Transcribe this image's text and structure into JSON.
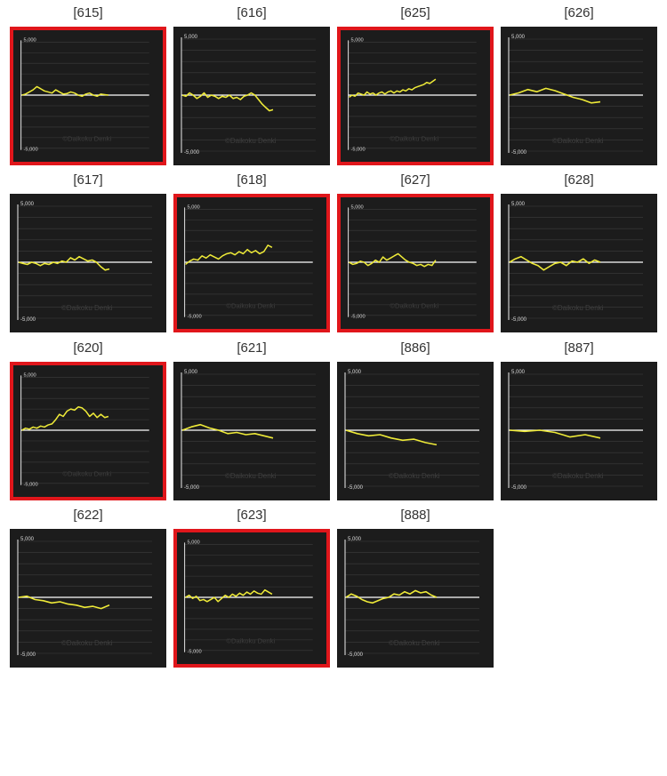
{
  "colors": {
    "line": "#eeea38",
    "highlight": "#e0161b",
    "panel": "#1c1c1c",
    "zero": "#ffffff"
  },
  "watermark": "©Daikoku Denki",
  "chart_data": [
    {
      "type": "line",
      "title": "[615]",
      "highlighted": true,
      "ylim": [
        -5000,
        5000
      ],
      "yticks": [
        "5,000",
        "-5,000"
      ],
      "grid": true,
      "values": [
        0,
        100,
        300,
        500,
        800,
        600,
        400,
        300,
        200,
        500,
        300,
        100,
        150,
        300,
        200,
        0,
        -100,
        100,
        200,
        0,
        -100,
        100,
        50,
        0
      ]
    },
    {
      "type": "line",
      "title": "[616]",
      "highlighted": false,
      "ylim": [
        -5000,
        5000
      ],
      "yticks": [
        "5,000",
        "-5,000"
      ],
      "grid": true,
      "values": [
        0,
        -100,
        200,
        0,
        -300,
        -100,
        200,
        -200,
        0,
        -100,
        -300,
        -100,
        -200,
        0,
        -300,
        -200,
        -400,
        -100,
        0,
        200,
        0,
        -400,
        -800,
        -1100,
        -1400,
        -1300
      ]
    },
    {
      "type": "line",
      "title": "[625]",
      "highlighted": true,
      "ylim": [
        -5000,
        5000
      ],
      "yticks": [
        "5,000",
        "-5,000"
      ],
      "grid": true,
      "values": [
        -200,
        0,
        -100,
        200,
        100,
        0,
        300,
        100,
        200,
        0,
        200,
        300,
        100,
        300,
        400,
        200,
        400,
        300,
        500,
        400,
        600,
        500,
        700,
        800,
        900,
        1000,
        1200,
        1100,
        1300,
        1500
      ]
    },
    {
      "type": "line",
      "title": "[626]",
      "highlighted": false,
      "ylim": [
        -5000,
        5000
      ],
      "yticks": [
        "5,000",
        "-5,000"
      ],
      "grid": true,
      "values": [
        0,
        200,
        500,
        300,
        600,
        400,
        100,
        -200,
        -400,
        -700,
        -600
      ]
    },
    {
      "type": "line",
      "title": "[617]",
      "highlighted": false,
      "ylim": [
        -5000,
        5000
      ],
      "yticks": [
        "5,000",
        "-5,000"
      ],
      "grid": true,
      "values": [
        0,
        -100,
        -200,
        0,
        -100,
        -300,
        -100,
        -200,
        0,
        -100,
        100,
        0,
        400,
        200,
        500,
        300,
        100,
        200,
        0,
        -400,
        -700,
        -600
      ]
    },
    {
      "type": "line",
      "title": "[618]",
      "highlighted": true,
      "ylim": [
        -5000,
        5000
      ],
      "yticks": [
        "5,000",
        "-5,000"
      ],
      "grid": true,
      "values": [
        -200,
        100,
        300,
        200,
        600,
        400,
        700,
        500,
        300,
        600,
        800,
        900,
        700,
        1000,
        800,
        1200,
        900,
        1100,
        800,
        1000,
        1600,
        1400
      ]
    },
    {
      "type": "line",
      "title": "[627]",
      "highlighted": true,
      "ylim": [
        -5000,
        5000
      ],
      "yticks": [
        "5,000",
        "-5,000"
      ],
      "grid": true,
      "values": [
        0,
        -200,
        -100,
        100,
        0,
        -300,
        -100,
        200,
        0,
        500,
        200,
        400,
        600,
        800,
        500,
        200,
        0,
        -100,
        -300,
        -200,
        -400,
        -200,
        -300,
        200
      ]
    },
    {
      "type": "line",
      "title": "[628]",
      "highlighted": false,
      "ylim": [
        -5000,
        5000
      ],
      "yticks": [
        "5,000",
        "-5,000"
      ],
      "grid": true,
      "values": [
        0,
        300,
        500,
        200,
        -100,
        -300,
        -700,
        -400,
        -100,
        0,
        -300,
        100,
        0,
        300,
        -100,
        200,
        0
      ]
    },
    {
      "type": "line",
      "title": "[620]",
      "highlighted": true,
      "ylim": [
        -5000,
        5000
      ],
      "yticks": [
        "5,000",
        "-5,000"
      ],
      "grid": true,
      "values": [
        0,
        200,
        100,
        300,
        200,
        400,
        300,
        500,
        600,
        1000,
        1500,
        1300,
        1800,
        2000,
        1900,
        2200,
        2100,
        1800,
        1300,
        1600,
        1200,
        1500,
        1200,
        1300
      ]
    },
    {
      "type": "line",
      "title": "[621]",
      "highlighted": false,
      "ylim": [
        -5000,
        5000
      ],
      "yticks": [
        "5,000",
        "-5,000"
      ],
      "grid": true,
      "values": [
        0,
        300,
        500,
        200,
        0,
        -300,
        -200,
        -400,
        -300,
        -500,
        -700
      ]
    },
    {
      "type": "line",
      "title": "[886]",
      "highlighted": false,
      "ylim": [
        -5000,
        5000
      ],
      "yticks": [
        "5,000",
        "-5,000"
      ],
      "grid": true,
      "values": [
        0,
        -300,
        -500,
        -400,
        -700,
        -900,
        -800,
        -1100,
        -1300
      ]
    },
    {
      "type": "line",
      "title": "[887]",
      "highlighted": false,
      "ylim": [
        -5000,
        5000
      ],
      "yticks": [
        "5,000",
        "-5,000"
      ],
      "grid": true,
      "values": [
        0,
        -100,
        0,
        -200,
        -600,
        -400,
        -700
      ]
    },
    {
      "type": "line",
      "title": "[622]",
      "highlighted": false,
      "ylim": [
        -5000,
        5000
      ],
      "yticks": [
        "5,000",
        "-5,000"
      ],
      "grid": true,
      "values": [
        0,
        100,
        -200,
        -300,
        -500,
        -400,
        -600,
        -700,
        -900,
        -800,
        -1000,
        -700
      ]
    },
    {
      "type": "line",
      "title": "[623]",
      "highlighted": true,
      "ylim": [
        -5000,
        5000
      ],
      "yticks": [
        "5,000",
        "-5,000"
      ],
      "grid": true,
      "values": [
        0,
        200,
        -100,
        100,
        -300,
        -200,
        -400,
        -200,
        0,
        -400,
        -100,
        200,
        0,
        300,
        100,
        400,
        200,
        500,
        300,
        600,
        400,
        300,
        700,
        500,
        300
      ]
    },
    {
      "type": "line",
      "title": "[888]",
      "highlighted": false,
      "ylim": [
        -5000,
        5000
      ],
      "yticks": [
        "5,000",
        "-5,000"
      ],
      "grid": true,
      "values": [
        0,
        300,
        100,
        -200,
        -400,
        -500,
        -300,
        -100,
        0,
        300,
        200,
        500,
        300,
        600,
        400,
        500,
        200,
        0
      ]
    }
  ]
}
